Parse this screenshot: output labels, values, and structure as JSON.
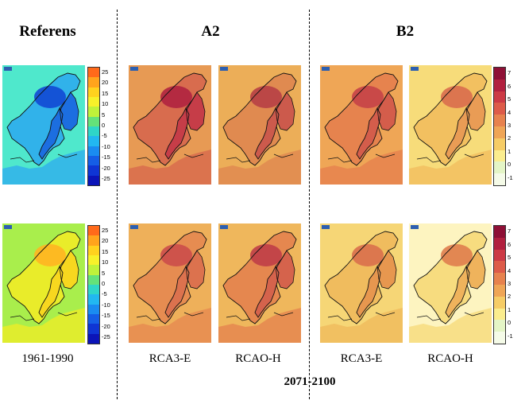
{
  "headers": {
    "reference": "Referens",
    "a2": "A2",
    "b2": "B2"
  },
  "period_labels": {
    "reference": "1961-1990",
    "future": "2071-2100"
  },
  "model_labels": {
    "a2_left": "RCA3-E",
    "a2_right": "RCAO-H",
    "b2_left": "RCA3-E",
    "b2_right": "RCAO-H"
  },
  "reference_colorbar": {
    "ticks": [
      "25",
      "20",
      "15",
      "10",
      "5",
      "0",
      "-5",
      "-10",
      "-15",
      "-20",
      "-25"
    ],
    "colors": [
      "#ff6a1a",
      "#ffa41c",
      "#ffd21e",
      "#f7f12a",
      "#bff23a",
      "#64e27a",
      "#2fd6c8",
      "#22b8f0",
      "#1a8cf0",
      "#155ee6",
      "#0f35d4",
      "#0b14b8"
    ]
  },
  "change_colorbar": {
    "ticks": [
      "7",
      "6",
      "5",
      "4",
      "3",
      "2",
      "1",
      "0",
      "-1"
    ],
    "colors": [
      "#8e1036",
      "#b1203f",
      "#cc3a45",
      "#dd5b49",
      "#e7824e",
      "#efa556",
      "#f6cc66",
      "#fbed8e",
      "#e4f5c6",
      "#f5fbe8"
    ]
  },
  "panel_colors": {
    "ref_top": [
      "#4fe8cc",
      "#31b2ea",
      "#1c6ee0",
      "#1248d4"
    ],
    "ref_bottom": [
      "#a9ee4c",
      "#e9ec2a",
      "#f7d71f",
      "#ffb521"
    ],
    "a2_rca3e_top": [
      "#e79a54",
      "#d86c4e",
      "#c63d48",
      "#b02440"
    ],
    "a2_rcaoh_top": [
      "#ecae58",
      "#e08a50",
      "#cc5a4c",
      "#b73f45"
    ],
    "b2_rca3e_top": [
      "#efa656",
      "#e6834e",
      "#d45d4b",
      "#c54348"
    ],
    "b2_rcaoh_top": [
      "#f7dc7a",
      "#f2c060",
      "#e99c55",
      "#d96d4e"
    ],
    "a2_rca3e_bottom": [
      "#eeb05a",
      "#e68c51",
      "#dc724e",
      "#cb4d4a"
    ],
    "a2_rcaoh_bottom": [
      "#efb75c",
      "#e5874f",
      "#d5634c",
      "#bf3e47"
    ],
    "b2_rca3e_bottom": [
      "#f6d676",
      "#f0bc5e",
      "#e7974f",
      "#d96f4c"
    ],
    "b2_rcaoh_bottom": [
      "#fdf4c0",
      "#f7dc7f",
      "#efb35c",
      "#df7d4e"
    ]
  }
}
